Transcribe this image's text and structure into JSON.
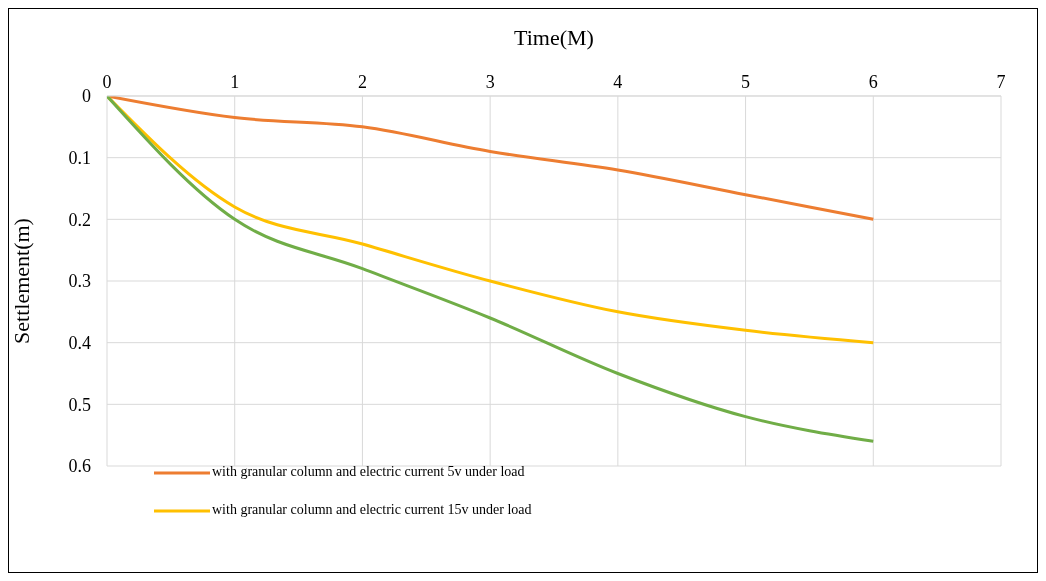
{
  "chart_data": {
    "type": "line",
    "xlabel": "Time(M)",
    "ylabel": "Settlement(m)",
    "x": [
      0,
      1,
      2,
      3,
      4,
      5,
      6
    ],
    "series": [
      {
        "name": "with granular column and electric current 5v under load",
        "color": "#ed7d31",
        "values": [
          0,
          0.035,
          0.05,
          0.09,
          0.12,
          0.16,
          0.2
        ]
      },
      {
        "name": "with granular column and electric current 15v under load",
        "color": "#ffc000",
        "values": [
          0,
          0.18,
          0.24,
          0.3,
          0.35,
          0.38,
          0.4
        ]
      },
      {
        "color": "#70ad47",
        "values": [
          0,
          0.2,
          0.28,
          0.36,
          0.45,
          0.52,
          0.56
        ]
      }
    ],
    "xlim": [
      0,
      7
    ],
    "xticks": [
      0,
      1,
      2,
      3,
      4,
      5,
      6,
      7
    ],
    "ylim": [
      0.6,
      0
    ],
    "yticks": [
      0,
      0.1,
      0.2,
      0.3,
      0.4,
      0.5,
      0.6
    ],
    "grid": true,
    "legend": "bottom left",
    "marker": "none",
    "line_style": "solid"
  }
}
